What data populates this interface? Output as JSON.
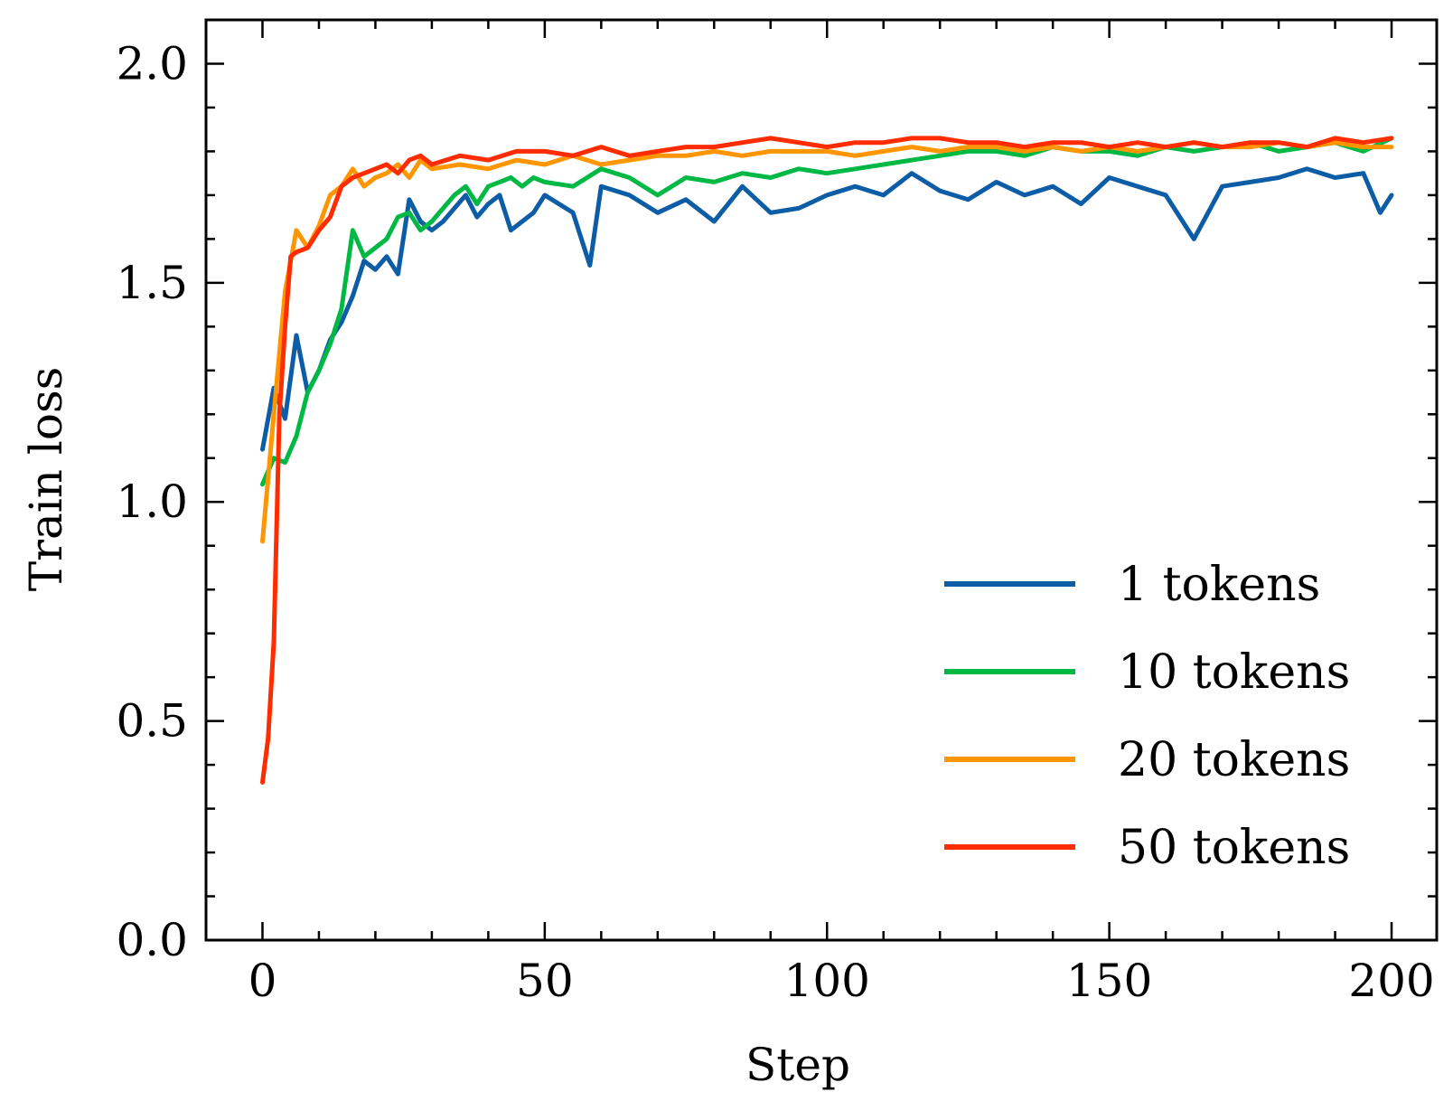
{
  "chart_data": {
    "type": "line",
    "title": "",
    "xlabel": "Step",
    "ylabel": "Train loss",
    "xlim": [
      -10,
      208
    ],
    "ylim": [
      0,
      2.1
    ],
    "xticks": [
      0,
      50,
      100,
      150,
      200
    ],
    "xtick_labels": [
      "0",
      "50",
      "100",
      "150",
      "200"
    ],
    "yticks": [
      0.0,
      0.5,
      1.0,
      1.5,
      2.0
    ],
    "ytick_labels": [
      "0.0",
      "0.5",
      "1.0",
      "1.5",
      "2.0"
    ],
    "x_minor_step": 10,
    "y_minor_step": 0.1,
    "grid": false,
    "legend_position": "lower-right",
    "series": [
      {
        "name": "1 tokens",
        "color": "#0C5DA5",
        "x": [
          0,
          2,
          4,
          6,
          8,
          10,
          12,
          14,
          16,
          18,
          20,
          22,
          24,
          26,
          28,
          30,
          32,
          34,
          36,
          38,
          40,
          42,
          44,
          46,
          48,
          50,
          55,
          58,
          60,
          65,
          70,
          75,
          80,
          85,
          90,
          95,
          100,
          105,
          110,
          115,
          120,
          125,
          130,
          135,
          140,
          145,
          150,
          155,
          160,
          165,
          170,
          175,
          180,
          185,
          190,
          195,
          198,
          200
        ],
        "y": [
          1.12,
          1.26,
          1.19,
          1.38,
          1.25,
          1.3,
          1.37,
          1.41,
          1.47,
          1.55,
          1.53,
          1.56,
          1.52,
          1.69,
          1.64,
          1.62,
          1.64,
          1.67,
          1.7,
          1.65,
          1.68,
          1.7,
          1.62,
          1.64,
          1.66,
          1.7,
          1.66,
          1.54,
          1.72,
          1.7,
          1.66,
          1.69,
          1.64,
          1.72,
          1.66,
          1.67,
          1.7,
          1.72,
          1.7,
          1.75,
          1.71,
          1.69,
          1.73,
          1.7,
          1.72,
          1.68,
          1.74,
          1.72,
          1.7,
          1.6,
          1.72,
          1.73,
          1.74,
          1.76,
          1.74,
          1.75,
          1.66,
          1.7
        ]
      },
      {
        "name": "10 tokens",
        "color": "#00B945",
        "x": [
          0,
          2,
          4,
          6,
          8,
          10,
          12,
          14,
          16,
          18,
          20,
          22,
          24,
          26,
          28,
          30,
          32,
          34,
          36,
          38,
          40,
          42,
          44,
          46,
          48,
          50,
          55,
          60,
          65,
          70,
          75,
          80,
          85,
          90,
          95,
          100,
          105,
          110,
          115,
          120,
          125,
          130,
          135,
          140,
          145,
          150,
          155,
          160,
          165,
          170,
          175,
          180,
          185,
          190,
          195,
          200
        ],
        "y": [
          1.04,
          1.1,
          1.09,
          1.15,
          1.25,
          1.3,
          1.36,
          1.44,
          1.62,
          1.56,
          1.58,
          1.6,
          1.65,
          1.66,
          1.62,
          1.64,
          1.67,
          1.7,
          1.72,
          1.68,
          1.72,
          1.73,
          1.74,
          1.72,
          1.74,
          1.73,
          1.72,
          1.76,
          1.74,
          1.7,
          1.74,
          1.73,
          1.75,
          1.74,
          1.76,
          1.75,
          1.76,
          1.77,
          1.78,
          1.79,
          1.8,
          1.8,
          1.79,
          1.81,
          1.8,
          1.8,
          1.79,
          1.81,
          1.8,
          1.81,
          1.82,
          1.8,
          1.81,
          1.82,
          1.8,
          1.83
        ]
      },
      {
        "name": "20 tokens",
        "color": "#FF9500",
        "x": [
          0,
          2,
          4,
          6,
          8,
          10,
          12,
          14,
          16,
          18,
          20,
          22,
          24,
          26,
          28,
          30,
          35,
          40,
          45,
          50,
          55,
          60,
          65,
          70,
          75,
          80,
          85,
          90,
          95,
          100,
          105,
          110,
          115,
          120,
          125,
          130,
          135,
          140,
          145,
          150,
          155,
          160,
          165,
          170,
          175,
          180,
          185,
          190,
          195,
          200
        ],
        "y": [
          0.91,
          1.2,
          1.48,
          1.62,
          1.58,
          1.63,
          1.7,
          1.72,
          1.76,
          1.72,
          1.74,
          1.75,
          1.77,
          1.74,
          1.78,
          1.76,
          1.77,
          1.76,
          1.78,
          1.77,
          1.79,
          1.77,
          1.78,
          1.79,
          1.79,
          1.8,
          1.79,
          1.8,
          1.8,
          1.8,
          1.79,
          1.8,
          1.81,
          1.8,
          1.81,
          1.81,
          1.8,
          1.81,
          1.8,
          1.81,
          1.8,
          1.81,
          1.82,
          1.81,
          1.81,
          1.82,
          1.81,
          1.82,
          1.81,
          1.81
        ]
      },
      {
        "name": "50 tokens",
        "color": "#FF2C00",
        "x": [
          0,
          1,
          2,
          3,
          4,
          5,
          6,
          8,
          10,
          12,
          14,
          16,
          18,
          20,
          22,
          24,
          26,
          28,
          30,
          35,
          40,
          45,
          50,
          55,
          60,
          65,
          70,
          75,
          80,
          85,
          90,
          95,
          100,
          105,
          110,
          115,
          120,
          125,
          130,
          135,
          140,
          145,
          150,
          155,
          160,
          165,
          170,
          175,
          180,
          185,
          190,
          195,
          200
        ],
        "y": [
          0.36,
          0.46,
          0.68,
          1.2,
          1.4,
          1.56,
          1.57,
          1.58,
          1.62,
          1.65,
          1.72,
          1.74,
          1.75,
          1.76,
          1.77,
          1.75,
          1.78,
          1.79,
          1.77,
          1.79,
          1.78,
          1.8,
          1.8,
          1.79,
          1.81,
          1.79,
          1.8,
          1.81,
          1.81,
          1.82,
          1.83,
          1.82,
          1.81,
          1.82,
          1.82,
          1.83,
          1.83,
          1.82,
          1.82,
          1.81,
          1.82,
          1.82,
          1.81,
          1.82,
          1.81,
          1.82,
          1.81,
          1.82,
          1.82,
          1.81,
          1.83,
          1.82,
          1.83
        ]
      }
    ]
  }
}
